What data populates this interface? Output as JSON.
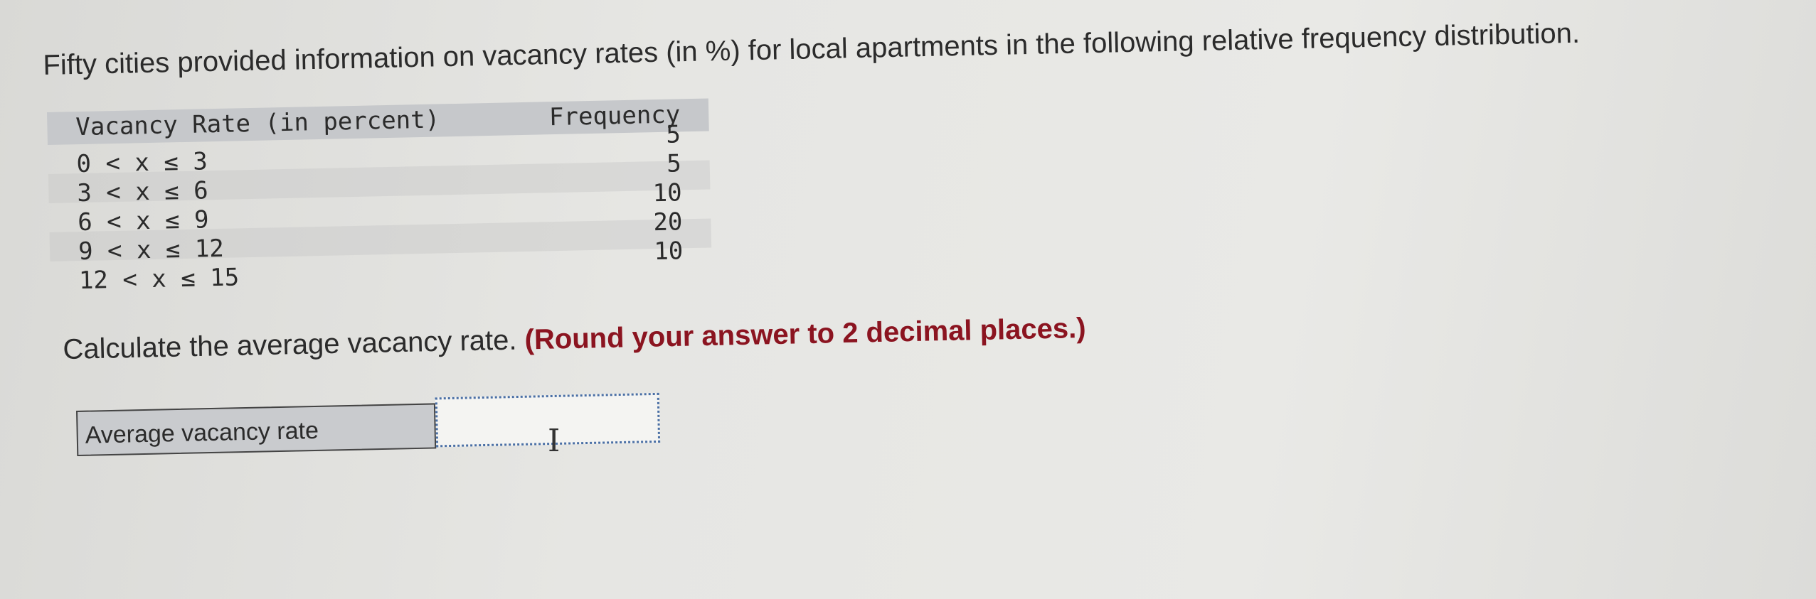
{
  "question": {
    "intro": "Fifty cities provided information on vacancy rates (in %) for local apartments in the following relative frequency distribution.",
    "prompt": "Calculate the average vacancy rate.",
    "hint": "(Round your answer to 2 decimal places.)"
  },
  "table": {
    "headers": [
      "Vacancy Rate (in percent)",
      "Frequency"
    ],
    "rows": [
      {
        "rate": "0 < x ≤ 3",
        "frequency": "5"
      },
      {
        "rate": "3 < x ≤ 6",
        "frequency": "5"
      },
      {
        "rate": "6 < x ≤ 9",
        "frequency": "10"
      },
      {
        "rate": "9 < x ≤ 12",
        "frequency": "20"
      },
      {
        "rate": "12 < x ≤ 15",
        "frequency": "10"
      }
    ]
  },
  "answer": {
    "label": "Average vacancy rate",
    "value": ""
  },
  "colors": {
    "hint": "#8b1420",
    "header_bg": "#c6c8cb",
    "input_border": "#4a6fa5"
  }
}
